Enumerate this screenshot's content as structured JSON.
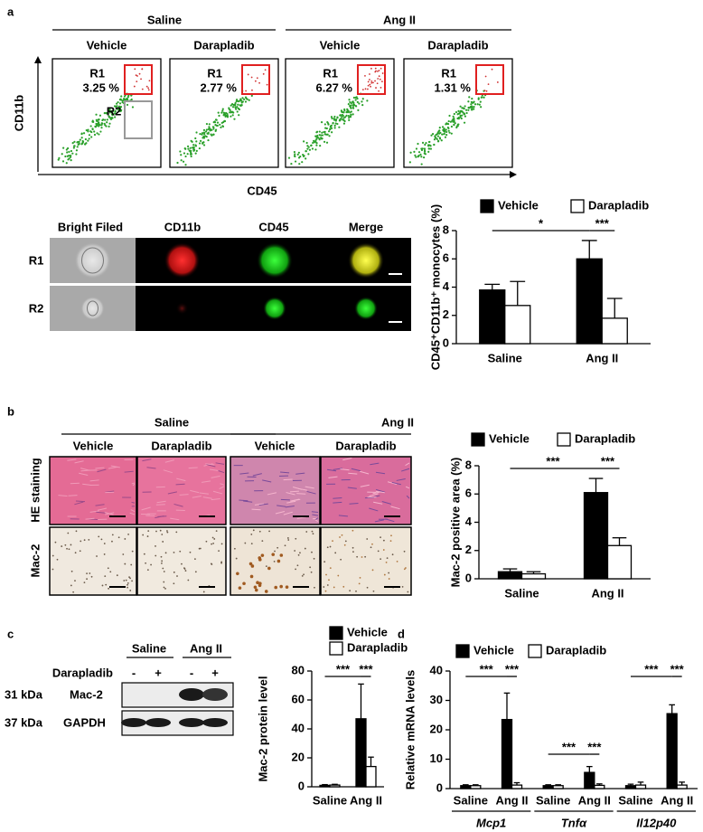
{
  "panel_a": {
    "label": "a",
    "groups": [
      "Saline",
      "Ang II"
    ],
    "treatments": [
      "Vehicle",
      "Darapladib",
      "Vehicle",
      "Darapladib"
    ],
    "plots": [
      {
        "gate": "R1",
        "percent": "3.25 %"
      },
      {
        "gate": "R1",
        "percent": "2.77 %"
      },
      {
        "gate": "R1",
        "percent": "6.27 %"
      },
      {
        "gate": "R1",
        "percent": "1.31 %"
      }
    ],
    "gate_r2": "R2",
    "y_axis": "CD11b",
    "x_axis": "CD45",
    "imaging": {
      "columns": [
        "Bright Filed",
        "CD11b",
        "CD45",
        "Merge"
      ],
      "rows": [
        "R1",
        "R2"
      ]
    }
  },
  "panel_b": {
    "label": "b",
    "groups": [
      "Saline",
      "Ang II"
    ],
    "treatments": [
      "Vehicle",
      "Darapladib",
      "Vehicle",
      "Darapladib"
    ],
    "rows": [
      "HE staining",
      "Mac-2"
    ]
  },
  "panel_c": {
    "label": "c",
    "groups": [
      "Saline",
      "Ang II"
    ],
    "treatment": "Darapladib",
    "signs": [
      "-",
      "+",
      "-",
      "+"
    ],
    "bands": [
      {
        "size": "31 kDa",
        "protein": "Mac-2"
      },
      {
        "size": "37 kDa",
        "protein": "GAPDH"
      }
    ]
  },
  "panel_d": {
    "label": "d"
  },
  "chart_data": [
    {
      "type": "bar",
      "ylabel": "CD45⁺CD11b⁺ monocytes (%)",
      "categories": [
        "Saline",
        "Ang II"
      ],
      "series": [
        {
          "name": "Vehicle",
          "color": "#000000",
          "values": [
            3.8,
            6.0
          ],
          "errors": [
            0.4,
            1.3
          ]
        },
        {
          "name": "Darapladib",
          "color": "#ffffff",
          "values": [
            2.7,
            1.8
          ],
          "errors": [
            1.7,
            1.4
          ]
        }
      ],
      "ylim": [
        0,
        8
      ],
      "yticks": [
        0,
        2,
        4,
        6,
        8
      ],
      "significance": [
        "*",
        "***"
      ]
    },
    {
      "type": "bar",
      "ylabel": "Mac-2 positive area (%)",
      "categories": [
        "Saline",
        "Ang II"
      ],
      "series": [
        {
          "name": "Vehicle",
          "color": "#000000",
          "values": [
            0.5,
            6.1
          ],
          "errors": [
            0.2,
            1.0
          ]
        },
        {
          "name": "Darapladib",
          "color": "#ffffff",
          "values": [
            0.35,
            2.35
          ],
          "errors": [
            0.15,
            0.55
          ]
        }
      ],
      "ylim": [
        0,
        8
      ],
      "yticks": [
        0,
        2,
        4,
        6,
        8
      ],
      "significance": [
        "***",
        "***"
      ]
    },
    {
      "type": "bar",
      "ylabel": "Mac-2 protein level",
      "categories": [
        "Saline",
        "Ang II"
      ],
      "series": [
        {
          "name": "Vehicle",
          "color": "#000000",
          "values": [
            1,
            47
          ],
          "errors": [
            0.5,
            24
          ]
        },
        {
          "name": "Darapladib",
          "color": "#ffffff",
          "values": [
            1.2,
            14
          ],
          "errors": [
            0.5,
            6.5
          ]
        }
      ],
      "ylim": [
        0,
        80
      ],
      "yticks": [
        0,
        20,
        40,
        60,
        80
      ],
      "significance": [
        "***",
        "***"
      ]
    },
    {
      "type": "bar",
      "ylabel": "Relative mRNA levels",
      "categories": [
        "Saline",
        "Ang II",
        "Saline",
        "Ang II",
        "Saline",
        "Ang II"
      ],
      "groups": [
        "Mcp1",
        "Tnfα",
        "Il12p40"
      ],
      "series": [
        {
          "name": "Vehicle",
          "color": "#000000",
          "values": [
            1,
            23.5,
            1,
            5.5,
            1,
            25.5
          ],
          "errors": [
            0.3,
            9,
            0.3,
            2,
            0.5,
            3
          ]
        },
        {
          "name": "Darapladib",
          "color": "#ffffff",
          "values": [
            1,
            1.2,
            1,
            1.1,
            1.2,
            1.2
          ],
          "errors": [
            0.3,
            0.8,
            0.3,
            0.5,
            1,
            1
          ]
        }
      ],
      "ylim": [
        0,
        40
      ],
      "yticks": [
        0,
        10,
        20,
        30,
        40
      ],
      "significance": [
        "***",
        "***",
        "***",
        "***",
        "***",
        "***"
      ]
    }
  ]
}
